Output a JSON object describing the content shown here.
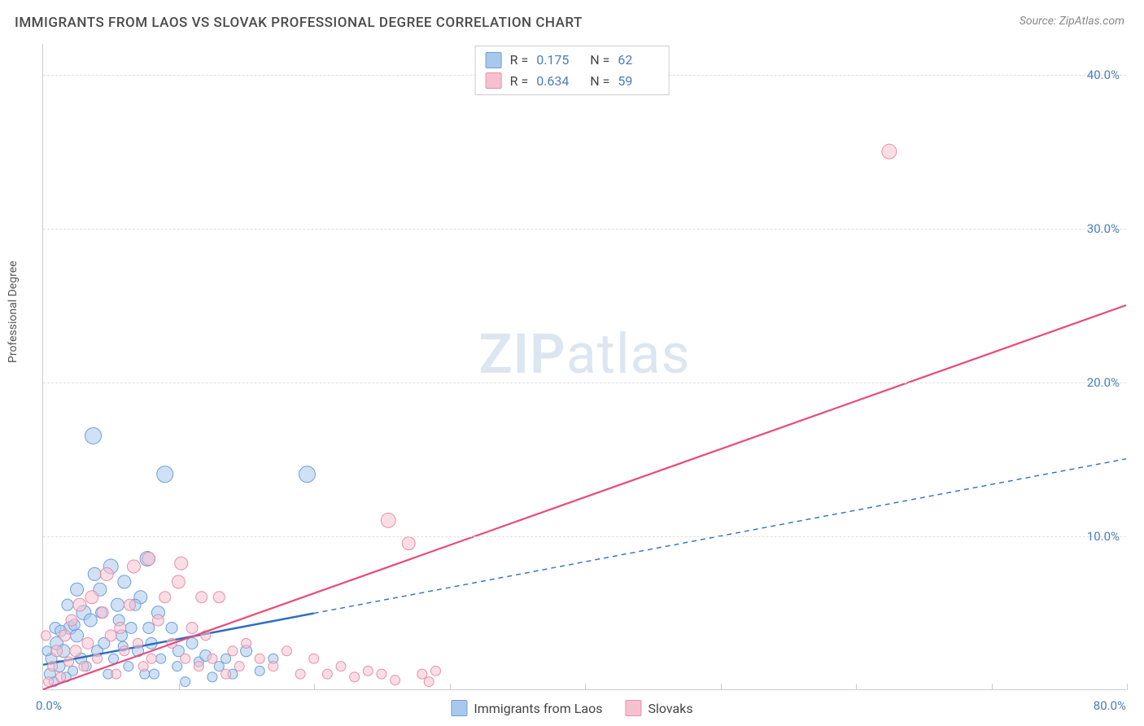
{
  "title": "IMMIGRANTS FROM LAOS VS SLOVAK PROFESSIONAL DEGREE CORRELATION CHART",
  "source_label": "Source:",
  "source_name": "ZipAtlas.com",
  "ylabel": "Professional Degree",
  "watermark_zip": "ZIP",
  "watermark_atlas": "atlas",
  "chart": {
    "type": "scatter",
    "xlim": [
      0,
      80
    ],
    "ylim": [
      0,
      42
    ],
    "x_origin_label": "0.0%",
    "x_max_label": "80.0%",
    "ytick_labels": [
      "10.0%",
      "20.0%",
      "30.0%",
      "40.0%"
    ],
    "ytick_values": [
      10,
      20,
      30,
      40
    ],
    "xtick_values": [
      0,
      10,
      20,
      30,
      40,
      50,
      60,
      70,
      80
    ],
    "background_color": "#ffffff",
    "grid_color": "#e0e0e0",
    "axis_color": "#cccccc",
    "tick_label_color": "#4a7ebb",
    "axis_label_color": "#555555",
    "title_color": "#4a4a4a",
    "title_fontsize": 17,
    "label_fontsize": 14,
    "tick_fontsize": 15,
    "marker_radius_range": [
      5,
      11
    ],
    "marker_opacity": 0.55,
    "series": [
      {
        "name": "Immigrants from Laos",
        "fill_color": "#a9c8ec",
        "stroke_color": "#6b9fd8",
        "line_color": "#2e6fc0",
        "line_style_solid_until_x": 20,
        "line_dash": "6 5",
        "line_width_solid": 2.5,
        "line_width_dashed": 1.4,
        "R": "0.175",
        "N": "62",
        "trend_start": [
          0,
          1.6
        ],
        "trend_end": [
          80,
          15.0
        ],
        "points": [
          [
            0.5,
            1.0,
            7
          ],
          [
            0.6,
            2.0,
            7
          ],
          [
            0.8,
            0.5,
            6
          ],
          [
            1.0,
            3.0,
            8
          ],
          [
            1.2,
            1.5,
            7
          ],
          [
            1.5,
            2.5,
            8
          ],
          [
            1.7,
            0.8,
            6
          ],
          [
            2.0,
            4.0,
            8
          ],
          [
            2.2,
            1.2,
            6
          ],
          [
            2.5,
            3.5,
            8
          ],
          [
            2.8,
            2.0,
            7
          ],
          [
            3.0,
            5.0,
            9
          ],
          [
            3.2,
            1.5,
            6
          ],
          [
            3.5,
            4.5,
            8
          ],
          [
            3.7,
            16.5,
            10
          ],
          [
            4.0,
            2.5,
            7
          ],
          [
            4.2,
            6.5,
            8
          ],
          [
            4.5,
            3.0,
            7
          ],
          [
            4.8,
            1.0,
            6
          ],
          [
            5.0,
            8.0,
            9
          ],
          [
            5.2,
            2.0,
            6
          ],
          [
            5.5,
            5.5,
            8
          ],
          [
            5.8,
            3.5,
            7
          ],
          [
            6.0,
            7.0,
            8
          ],
          [
            6.3,
            1.5,
            6
          ],
          [
            6.5,
            4.0,
            7
          ],
          [
            7.0,
            2.5,
            7
          ],
          [
            7.2,
            6.0,
            8
          ],
          [
            7.5,
            1.0,
            6
          ],
          [
            7.7,
            8.5,
            9
          ],
          [
            8.0,
            3.0,
            7
          ],
          [
            8.5,
            5.0,
            8
          ],
          [
            8.7,
            2.0,
            6
          ],
          [
            9.0,
            14.0,
            10
          ],
          [
            9.5,
            4.0,
            7
          ],
          [
            9.9,
            1.5,
            6
          ],
          [
            10.0,
            2.5,
            7
          ],
          [
            10.5,
            0.5,
            6
          ],
          [
            11.0,
            3.0,
            7
          ],
          [
            11.5,
            1.8,
            6
          ],
          [
            12.0,
            2.2,
            7
          ],
          [
            12.5,
            0.8,
            6
          ],
          [
            13.0,
            1.5,
            6
          ],
          [
            13.5,
            2.0,
            6
          ],
          [
            14.0,
            1.0,
            6
          ],
          [
            15.0,
            2.5,
            7
          ],
          [
            16.0,
            1.2,
            6
          ],
          [
            17.0,
            2.0,
            6
          ],
          [
            19.5,
            14.0,
            10
          ],
          [
            2.5,
            6.5,
            8
          ],
          [
            3.8,
            7.5,
            8
          ],
          [
            4.3,
            5.0,
            7
          ],
          [
            5.6,
            4.5,
            7
          ],
          [
            1.8,
            5.5,
            7
          ],
          [
            2.3,
            4.2,
            7
          ],
          [
            6.8,
            5.5,
            7
          ],
          [
            7.8,
            4.0,
            7
          ],
          [
            0.3,
            2.5,
            6
          ],
          [
            0.9,
            4.0,
            7
          ],
          [
            1.3,
            3.8,
            7
          ],
          [
            5.9,
            2.8,
            6
          ],
          [
            8.2,
            1.0,
            6
          ]
        ]
      },
      {
        "name": "Slovaks",
        "fill_color": "#f6c1cf",
        "stroke_color": "#e78fa8",
        "line_color": "#e94b77",
        "line_style_solid_until_x": 80,
        "line_dash": "",
        "line_width_solid": 2.2,
        "line_width_dashed": 0,
        "R": "0.634",
        "N": "59",
        "trend_start": [
          0,
          0.0
        ],
        "trend_end": [
          80,
          25.0
        ],
        "points": [
          [
            0.4,
            0.5,
            6
          ],
          [
            0.7,
            1.5,
            6
          ],
          [
            1.0,
            2.5,
            7
          ],
          [
            1.3,
            0.8,
            6
          ],
          [
            1.6,
            3.5,
            7
          ],
          [
            1.9,
            1.8,
            6
          ],
          [
            2.1,
            4.5,
            7
          ],
          [
            2.4,
            2.5,
            7
          ],
          [
            2.7,
            5.5,
            8
          ],
          [
            3.0,
            1.5,
            6
          ],
          [
            3.3,
            3.0,
            7
          ],
          [
            3.6,
            6.0,
            8
          ],
          [
            4.0,
            2.0,
            6
          ],
          [
            4.4,
            5.0,
            7
          ],
          [
            4.7,
            7.5,
            8
          ],
          [
            5.0,
            3.5,
            7
          ],
          [
            5.4,
            1.0,
            6
          ],
          [
            5.7,
            4.0,
            7
          ],
          [
            6.0,
            2.5,
            6
          ],
          [
            6.4,
            5.5,
            7
          ],
          [
            6.7,
            8.0,
            8
          ],
          [
            7.0,
            3.0,
            6
          ],
          [
            7.4,
            1.5,
            6
          ],
          [
            7.8,
            8.5,
            8
          ],
          [
            8.0,
            2.0,
            6
          ],
          [
            8.5,
            4.5,
            7
          ],
          [
            9.0,
            6.0,
            7
          ],
          [
            9.5,
            3.0,
            6
          ],
          [
            10.0,
            7.0,
            8
          ],
          [
            10.5,
            2.0,
            6
          ],
          [
            11.0,
            4.0,
            7
          ],
          [
            10.2,
            8.2,
            8
          ],
          [
            11.7,
            6.0,
            7
          ],
          [
            11.5,
            1.5,
            6
          ],
          [
            12.0,
            3.5,
            6
          ],
          [
            12.5,
            2.0,
            6
          ],
          [
            13.0,
            6.0,
            7
          ],
          [
            13.5,
            1.0,
            6
          ],
          [
            14.0,
            2.5,
            6
          ],
          [
            14.5,
            1.5,
            6
          ],
          [
            15.0,
            3.0,
            6
          ],
          [
            16.0,
            2.0,
            6
          ],
          [
            17.0,
            1.5,
            6
          ],
          [
            18.0,
            2.5,
            6
          ],
          [
            19.0,
            1.0,
            6
          ],
          [
            20.0,
            2.0,
            6
          ],
          [
            21.0,
            1.0,
            6
          ],
          [
            22.0,
            1.5,
            6
          ],
          [
            23.0,
            0.8,
            6
          ],
          [
            24.0,
            1.2,
            6
          ],
          [
            25.0,
            1.0,
            6
          ],
          [
            25.5,
            11.0,
            9
          ],
          [
            26.0,
            0.6,
            6
          ],
          [
            27.0,
            9.5,
            8
          ],
          [
            28.5,
            0.5,
            6
          ],
          [
            28.0,
            1.0,
            6
          ],
          [
            29.0,
            1.2,
            6
          ],
          [
            62.5,
            35.0,
            9
          ],
          [
            0.2,
            3.5,
            6
          ]
        ]
      }
    ]
  },
  "stats_legend_labels": {
    "R": "R =",
    "N": "N ="
  },
  "bottom_legend": [
    "Immigrants from Laos",
    "Slovaks"
  ]
}
